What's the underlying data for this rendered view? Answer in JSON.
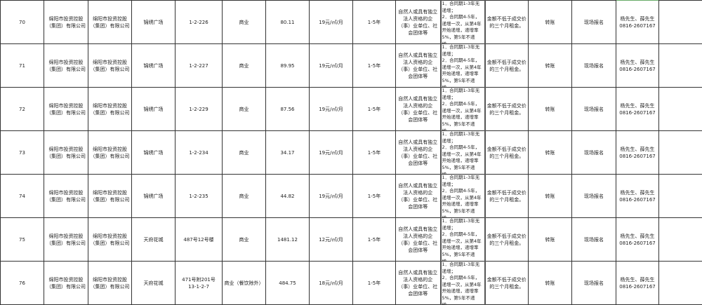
{
  "rows": [
    {
      "no": "70",
      "owner": "绵阳市投资控股（集团）有限公司",
      "lessor": "绵阳市投资控股（集团）有限公司",
      "project": "锦绣广场",
      "unit": "1-2-226",
      "use": "商业",
      "area": "80.11",
      "price": "19元/㎡/月",
      "term": "1-5年",
      "eligibility": "自然人或具有独立法人资格的企（事）业单位、社会团体等",
      "increase": "1．合同期1-3年无递增；\n2．合同期4-5年，递增一次，从第4年开始递增，递增率5%，第5年不递增。",
      "deposit": "金额不低于成交价的三个月租金。",
      "payment": "转账",
      "signup": "现场报名",
      "contact": "杨先生、薛先生\n0816-2607167",
      "remark": ""
    },
    {
      "no": "71",
      "owner": "绵阳市投资控股（集团）有限公司",
      "lessor": "绵阳市投资控股（集团）有限公司",
      "project": "锦绣广场",
      "unit": "1-2-227",
      "use": "商业",
      "area": "89.95",
      "price": "19元/㎡/月",
      "term": "1-5年",
      "eligibility": "自然人或具有独立法人资格的企（事）业单位、社会团体等",
      "increase": "1．合同期1-3年无递增；\n2．合同期4-5年，递增一次，从第4年开始递增，递增率5%，第5年不递增。",
      "deposit": "金额不低于成交价的三个月租金。",
      "payment": "转账",
      "signup": "现场报名",
      "contact": "杨先生、薛先生\n0816-2607167",
      "remark": ""
    },
    {
      "no": "72",
      "owner": "绵阳市投资控股（集团）有限公司",
      "lessor": "绵阳市投资控股（集团）有限公司",
      "project": "锦绣广场",
      "unit": "1-2-229",
      "use": "商业",
      "area": "87.56",
      "price": "19元/㎡/月",
      "term": "1-5年",
      "eligibility": "自然人或具有独立法人资格的企（事）业单位、社会团体等",
      "increase": "1．合同期1-3年无递增；\n2．合同期4-5年，递增一次，从第4年开始递增，递增率5%，第5年不递增。",
      "deposit": "金额不低于成交价的三个月租金。",
      "payment": "转账",
      "signup": "现场报名",
      "contact": "杨先生、薛先生\n0816-2607167",
      "remark": ""
    },
    {
      "no": "73",
      "owner": "绵阳市投资控股（集团）有限公司",
      "lessor": "绵阳市投资控股（集团）有限公司",
      "project": "锦绣广场",
      "unit": "1-2-234",
      "use": "商业",
      "area": "34.17",
      "price": "19元/㎡/月",
      "term": "1-5年",
      "eligibility": "自然人或具有独立法人资格的企（事）业单位、社会团体等",
      "increase": "1．合同期1-3年无递增；\n2．合同期4-5年，递增一次，从第4年开始递增，递增率5%，第5年不递增。",
      "deposit": "金额不低于成交价的三个月租金。",
      "payment": "转账",
      "signup": "现场报名",
      "contact": "杨先生、薛先生\n0816-2607167",
      "remark": ""
    },
    {
      "no": "74",
      "owner": "绵阳市投资控股（集团）有限公司",
      "lessor": "绵阳市投资控股（集团）有限公司",
      "project": "锦绣广场",
      "unit": "1-2-235",
      "use": "商业",
      "area": "44.82",
      "price": "19元/㎡/月",
      "term": "1-5年",
      "eligibility": "自然人或具有独立法人资格的企（事）业单位、社会团体等",
      "increase": "1．合同期1-3年无递增；\n2．合同期4-5年，递增一次，从第4年开始递增，递增率5%，第5年不递增。",
      "deposit": "金额不低于成交价的三个月租金。",
      "payment": "转账",
      "signup": "现场报名",
      "contact": "杨先生、薛先生\n0816-2607167",
      "remark": ""
    },
    {
      "no": "75",
      "owner": "绵阳市投资控股（集团）有限公司",
      "lessor": "绵阳市投资控股（集团）有限公司",
      "project": "天府花城",
      "unit": "487号12号楼",
      "use": "商业",
      "area": "1481.12",
      "price": "12元/㎡/月",
      "term": "1-5年",
      "eligibility": "自然人或具有独立法人资格的企（事）业单位、社会团体等",
      "increase": "1．合同期1-3年无递增；\n2．合同期4-5年，递增一次，从第4年开始递增，递增率5%，第5年不递增。",
      "deposit": "金额不低于成交价的三个月租金。",
      "payment": "转账",
      "signup": "现场报名",
      "contact": "杨先生、薛先生\n0816-2607167",
      "remark": ""
    },
    {
      "no": "76",
      "owner": "绵阳市投资控股（集团）有限公司",
      "lessor": "绵阳市投资控股（集团）有限公司",
      "project": "天府花城",
      "unit": "471号附201号\n13-1-2-7",
      "use": "商业（餐饮除外）",
      "area": "484.75",
      "price": "18元/㎡/月",
      "term": "1-5年",
      "eligibility": "自然人或具有独立法人资格的企（事）业单位、社会团体等",
      "increase": "1．合同期1-3年无递增；\n2．合同期4-5年，递增一次，从第4年开始递增，递增率5%，第5年不递增。",
      "deposit": "金额不低于成交价的三个月租金。",
      "payment": "转账",
      "signup": "现场报名",
      "contact": "杨先生、薛先生\n0816-2607167",
      "remark": ""
    }
  ]
}
